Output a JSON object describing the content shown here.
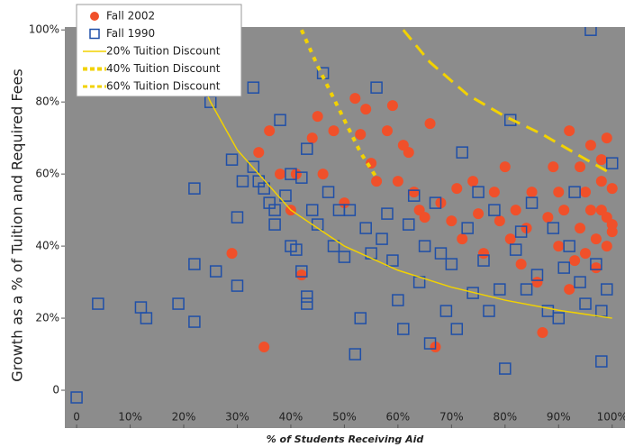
{
  "chart_data": {
    "type": "scatter",
    "x_label": "% of Students Receiving Aid",
    "y_label": "Growth as a % of Tuition and Required Fees",
    "xlim": [
      -2.2,
      102.4
    ],
    "ylim": [
      -10.5,
      100.8
    ],
    "xticks": [
      0,
      {
        "value": 10,
        "label": "10%"
      },
      {
        "value": 20,
        "label": "20%"
      },
      {
        "value": 30,
        "label": "30%"
      },
      {
        "value": 40,
        "label": "40%"
      },
      {
        "value": 50,
        "label": "50%"
      },
      {
        "value": 60,
        "label": "60%"
      },
      {
        "value": 70,
        "label": "70%"
      },
      {
        "value": 80,
        "label": "80%"
      },
      {
        "value": 90,
        "label": "90%"
      },
      {
        "value": 100,
        "label": "100%"
      }
    ],
    "yticks": [
      0,
      {
        "value": 20,
        "label": "20%"
      },
      {
        "value": 40,
        "label": "40%"
      },
      {
        "value": 60,
        "label": "60%"
      },
      {
        "value": 80,
        "label": "80%"
      },
      {
        "value": 100,
        "label": "100%"
      }
    ],
    "background": "#8c8c8c",
    "series": [
      {
        "name": "Fall 2002",
        "style": "scatter",
        "marker": "circle",
        "color": "#f0502a",
        "x": [
          29,
          35,
          34,
          36,
          38,
          40,
          41,
          42,
          44,
          45,
          46,
          48,
          50,
          52,
          53,
          54,
          55,
          56,
          58,
          59,
          60,
          61,
          62,
          63,
          64,
          65,
          66,
          67,
          68,
          70,
          71,
          72,
          74,
          75,
          76,
          78,
          79,
          80,
          81,
          82,
          83,
          84,
          85,
          86,
          87,
          88,
          89,
          90,
          91,
          92,
          93,
          94,
          95,
          96,
          97,
          98,
          99,
          100,
          99,
          98,
          97,
          100,
          96,
          95,
          94,
          99,
          100,
          98,
          92,
          90
        ],
        "values": [
          38,
          12,
          66,
          72,
          60,
          50,
          60,
          32,
          70,
          76,
          60,
          72,
          52,
          81,
          71,
          78,
          63,
          58,
          72,
          79,
          58,
          68,
          66,
          55,
          50,
          48,
          74,
          12,
          52,
          47,
          56,
          42,
          58,
          49,
          38,
          55,
          47,
          62,
          42,
          50,
          35,
          45,
          55,
          30,
          16,
          48,
          62,
          40,
          50,
          72,
          36,
          45,
          55,
          68,
          42,
          50,
          48,
          56,
          40,
          64,
          34,
          46,
          50,
          38,
          62,
          70,
          44,
          58,
          28,
          55
        ]
      },
      {
        "name": "Fall 1990",
        "style": "scatter",
        "marker": "square",
        "color": "#1f4fa8",
        "x": [
          0,
          4,
          12,
          13,
          19,
          22,
          22,
          22,
          25,
          26,
          29,
          30,
          30,
          31,
          33,
          34,
          35,
          36,
          37,
          37,
          38,
          39,
          40,
          40,
          41,
          42,
          42,
          43,
          43,
          43,
          44,
          45,
          46,
          47,
          48,
          49,
          50,
          51,
          52,
          53,
          54,
          55,
          56,
          57,
          58,
          59,
          60,
          61,
          62,
          63,
          64,
          65,
          66,
          67,
          68,
          69,
          70,
          71,
          72,
          73,
          74,
          75,
          76,
          77,
          78,
          79,
          80,
          81,
          82,
          83,
          84,
          85,
          86,
          88,
          89,
          90,
          91,
          92,
          93,
          94,
          95,
          96,
          97,
          98,
          98,
          99,
          100,
          33
        ],
        "values": [
          -2,
          24,
          23,
          20,
          24,
          56,
          35,
          19,
          80,
          33,
          64,
          48,
          29,
          58,
          62,
          58,
          56,
          52,
          50,
          46,
          75,
          54,
          60,
          40,
          39,
          59,
          33,
          67,
          26,
          24,
          50,
          46,
          88,
          55,
          40,
          50,
          37,
          50,
          10,
          20,
          45,
          38,
          84,
          42,
          49,
          36,
          25,
          17,
          46,
          54,
          30,
          40,
          13,
          52,
          38,
          22,
          35,
          17,
          66,
          45,
          27,
          55,
          36,
          22,
          50,
          28,
          6,
          75,
          39,
          44,
          28,
          52,
          32,
          22,
          45,
          20,
          34,
          40,
          55,
          30,
          24,
          100,
          35,
          22,
          8,
          28,
          63,
          84
        ]
      },
      {
        "name": "20% Tuition Discount",
        "style": "line",
        "dash": "solid",
        "color": "#f2d200",
        "x": [
          23.5,
          25,
          30,
          40,
          50,
          60,
          70,
          80,
          90,
          100
        ],
        "values": [
          85,
          80,
          66.7,
          50,
          40,
          33.3,
          28.6,
          25,
          22.2,
          20
        ]
      },
      {
        "name": "40% Tuition Discount",
        "style": "line",
        "dash": "dotted",
        "color": "#f2d200",
        "x": [
          42,
          45,
          48,
          51,
          53,
          56
        ],
        "values": [
          100,
          90,
          81,
          72,
          66,
          59
        ]
      },
      {
        "name": "60% Tuition Discount",
        "style": "line",
        "dash": "dashed",
        "color": "#f2d200",
        "x": [
          61,
          66,
          73,
          80,
          87,
          94,
          100
        ],
        "values": [
          100,
          91,
          82,
          76,
          71,
          65,
          60
        ]
      }
    ]
  }
}
